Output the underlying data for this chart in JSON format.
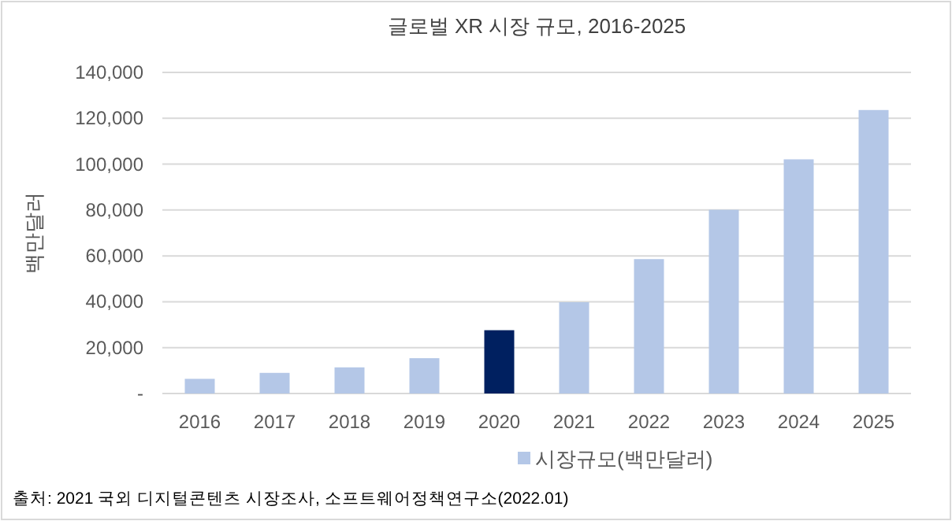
{
  "chart_data": {
    "type": "bar",
    "title": "글로벌 XR 시장 규모, 2016-2025",
    "ylabel": "백만달러",
    "categories": [
      "2016",
      "2017",
      "2018",
      "2019",
      "2020",
      "2021",
      "2022",
      "2023",
      "2024",
      "2025"
    ],
    "series": [
      {
        "name": "시장규모(백만달러)",
        "color": "#b4c7e7",
        "colors": [
          "#b4c7e7",
          "#b4c7e7",
          "#b4c7e7",
          "#b4c7e7",
          "#002060",
          "#b4c7e7",
          "#b4c7e7",
          "#b4c7e7",
          "#b4c7e7",
          "#b4c7e7"
        ],
        "values": [
          6400,
          9000,
          11400,
          15400,
          27600,
          39800,
          58600,
          80100,
          102100,
          123600
        ]
      }
    ],
    "ylim": [
      0,
      140000
    ],
    "yticks": [
      {
        "value": 0,
        "label": "-"
      },
      {
        "value": 20000,
        "label": "20,000"
      },
      {
        "value": 40000,
        "label": "40,000"
      },
      {
        "value": 60000,
        "label": "60,000"
      },
      {
        "value": 80000,
        "label": "80,000"
      },
      {
        "value": 100000,
        "label": "100,000"
      },
      {
        "value": 120000,
        "label": "120,000"
      },
      {
        "value": 140000,
        "label": "140,000"
      }
    ],
    "grid": "y",
    "legend": "bottom",
    "annotations": [
      "출처: 2021 국외 디지털콘텐츠 시장조사, 소프트웨어정책연구소(2022.01)"
    ]
  }
}
